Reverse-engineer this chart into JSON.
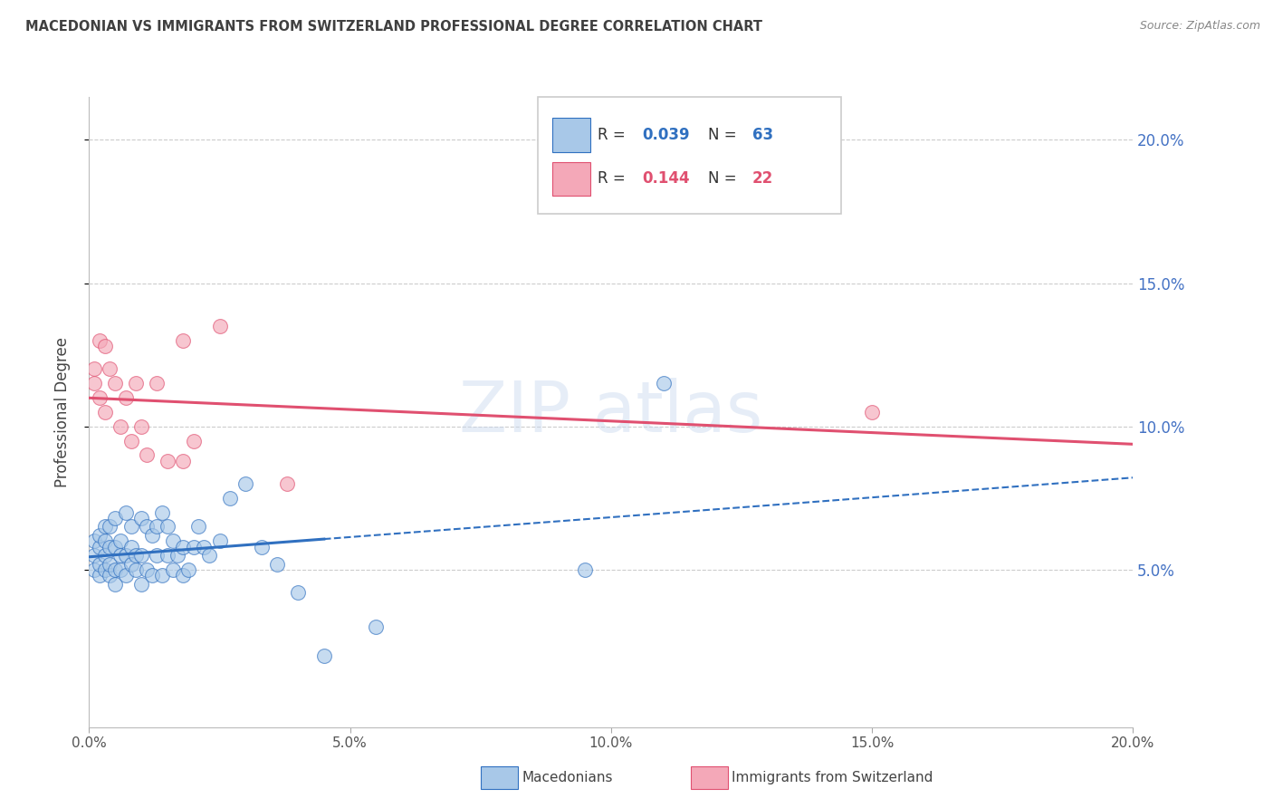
{
  "title": "MACEDONIAN VS IMMIGRANTS FROM SWITZERLAND PROFESSIONAL DEGREE CORRELATION CHART",
  "source": "Source: ZipAtlas.com",
  "ylabel": "Professional Degree",
  "legend_label_blue": "Macedonians",
  "legend_label_pink": "Immigrants from Switzerland",
  "R_blue": "0.039",
  "N_blue": "63",
  "R_pink": "0.144",
  "N_pink": "22",
  "xlim": [
    0.0,
    0.2
  ],
  "ylim": [
    -0.005,
    0.215
  ],
  "xticks": [
    0.0,
    0.05,
    0.1,
    0.15,
    0.2
  ],
  "yticks": [
    0.05,
    0.1,
    0.15,
    0.2
  ],
  "xticklabels": [
    "0.0%",
    "5.0%",
    "10.0%",
    "15.0%",
    "20.0%"
  ],
  "yticklabels": [
    "5.0%",
    "10.0%",
    "15.0%",
    "20.0%"
  ],
  "color_blue": "#A8C8E8",
  "color_pink": "#F4A8B8",
  "line_blue": "#3070C0",
  "line_pink": "#E05070",
  "tick_color": "#4472C4",
  "title_color": "#404040",
  "blue_x": [
    0.001,
    0.001,
    0.001,
    0.002,
    0.002,
    0.002,
    0.002,
    0.003,
    0.003,
    0.003,
    0.003,
    0.004,
    0.004,
    0.004,
    0.004,
    0.005,
    0.005,
    0.005,
    0.005,
    0.006,
    0.006,
    0.006,
    0.007,
    0.007,
    0.007,
    0.008,
    0.008,
    0.008,
    0.009,
    0.009,
    0.01,
    0.01,
    0.01,
    0.011,
    0.011,
    0.012,
    0.012,
    0.013,
    0.013,
    0.014,
    0.014,
    0.015,
    0.015,
    0.016,
    0.016,
    0.017,
    0.018,
    0.018,
    0.019,
    0.02,
    0.021,
    0.022,
    0.023,
    0.025,
    0.027,
    0.03,
    0.033,
    0.036,
    0.04,
    0.045,
    0.055,
    0.095,
    0.11
  ],
  "blue_y": [
    0.05,
    0.055,
    0.06,
    0.048,
    0.052,
    0.058,
    0.062,
    0.05,
    0.055,
    0.06,
    0.065,
    0.048,
    0.052,
    0.058,
    0.065,
    0.045,
    0.05,
    0.058,
    0.068,
    0.05,
    0.055,
    0.06,
    0.048,
    0.055,
    0.07,
    0.052,
    0.058,
    0.065,
    0.05,
    0.055,
    0.045,
    0.055,
    0.068,
    0.05,
    0.065,
    0.048,
    0.062,
    0.055,
    0.065,
    0.048,
    0.07,
    0.055,
    0.065,
    0.05,
    0.06,
    0.055,
    0.048,
    0.058,
    0.05,
    0.058,
    0.065,
    0.058,
    0.055,
    0.06,
    0.075,
    0.08,
    0.058,
    0.052,
    0.042,
    0.02,
    0.03,
    0.05,
    0.115
  ],
  "pink_x": [
    0.001,
    0.001,
    0.002,
    0.002,
    0.003,
    0.003,
    0.004,
    0.005,
    0.006,
    0.007,
    0.008,
    0.009,
    0.01,
    0.011,
    0.013,
    0.015,
    0.018,
    0.02,
    0.025,
    0.038,
    0.15,
    0.018
  ],
  "pink_y": [
    0.115,
    0.12,
    0.11,
    0.13,
    0.128,
    0.105,
    0.12,
    0.115,
    0.1,
    0.11,
    0.095,
    0.115,
    0.1,
    0.09,
    0.115,
    0.088,
    0.13,
    0.095,
    0.135,
    0.08,
    0.105,
    0.088
  ]
}
